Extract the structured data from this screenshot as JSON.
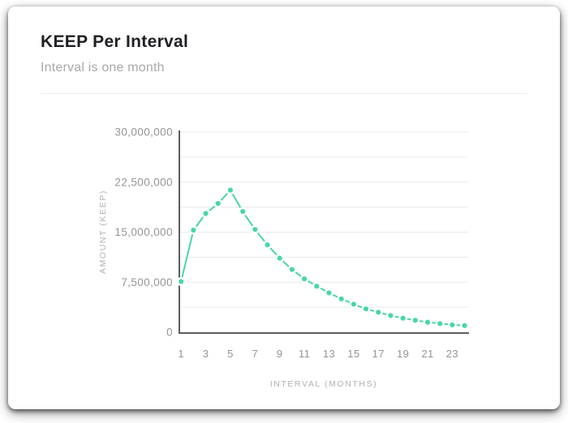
{
  "card": {
    "title": "KEEP Per Interval",
    "subtitle": "Interval is one month"
  },
  "colors": {
    "accent": "#48d6a8",
    "title_text": "#1e1f23",
    "subtitle_text": "#a9a9a9",
    "axis_tick_text": "#949494",
    "axis_title_text": "#b2b2b2",
    "gridline": "#e9e9e9",
    "axis_line": "#5d5d5d",
    "card_background": "#ffffff",
    "dot_ring": "#ffffff"
  },
  "chart_data": {
    "type": "line",
    "title": "KEEP Per Interval",
    "subtitle": "Interval is one month",
    "xlabel": "INTERVAL (MONTHS)",
    "ylabel": "AMOUNT (KEEP)",
    "x": [
      1,
      2,
      3,
      4,
      5,
      6,
      7,
      8,
      9,
      10,
      11,
      12,
      13,
      14,
      15,
      16,
      17,
      18,
      19,
      20,
      21,
      22,
      23,
      24
    ],
    "values": [
      7600000,
      15300000,
      17800000,
      19300000,
      21300000,
      18100000,
      15400000,
      13100000,
      11100000,
      9400000,
      8000000,
      6900000,
      5900000,
      5000000,
      4200000,
      3500000,
      3000000,
      2500000,
      2100000,
      1800000,
      1500000,
      1300000,
      1100000,
      1000000
    ],
    "ylim": [
      0,
      30000000
    ],
    "y_ticks": [
      0,
      7500000,
      15000000,
      22500000,
      30000000
    ],
    "x_ticks": [
      1,
      3,
      5,
      7,
      9,
      11,
      13,
      15,
      17,
      19,
      21,
      23
    ],
    "grid_step": 3750000,
    "grid": true,
    "legend_position": "none",
    "marker": "circle",
    "line_color": "#48d6a8"
  }
}
